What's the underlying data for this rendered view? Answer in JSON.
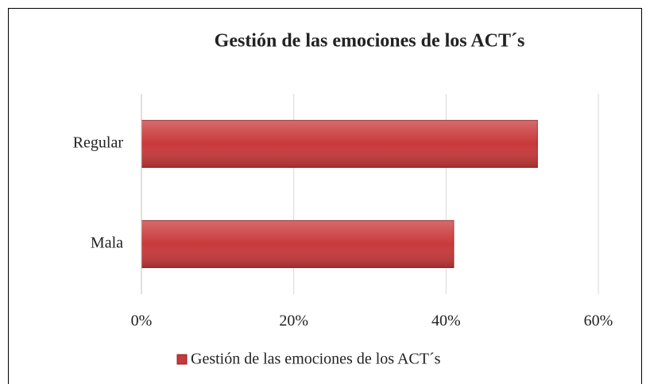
{
  "chart_data": {
    "type": "bar",
    "orientation": "horizontal",
    "title": "Gestión de las emociones de los ACT´s",
    "categories": [
      "Regular",
      "Mala"
    ],
    "series": [
      {
        "name": "Gestión de las emociones de los ACT´s",
        "color": "#c8393b",
        "values": [
          52,
          41
        ]
      }
    ],
    "xlim": [
      0,
      60
    ],
    "xticks": [
      {
        "value": 0,
        "label": "0%"
      },
      {
        "value": 20,
        "label": "20%"
      },
      {
        "value": 40,
        "label": "40%"
      },
      {
        "value": 60,
        "label": "60%"
      }
    ],
    "grid": true,
    "legend": "bottom"
  }
}
